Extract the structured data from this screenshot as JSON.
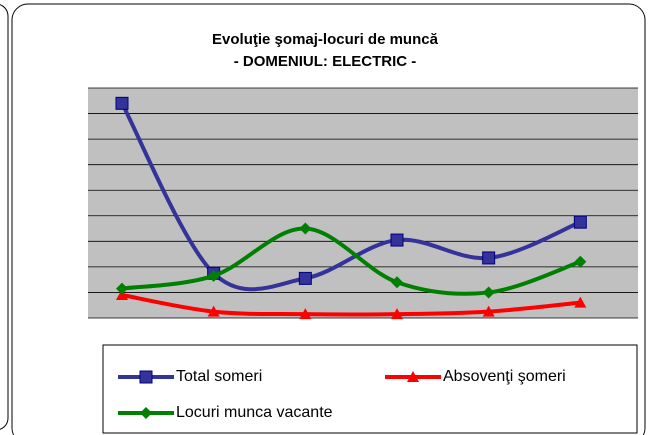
{
  "chart_data": {
    "type": "line",
    "title": [
      "Evoluţie şomaj-locuri de muncă",
      "- DOMENIUL: ELECTRIC -"
    ],
    "series": [
      {
        "name": "Total someri",
        "color": "#333399",
        "marker": "square",
        "values": [
          168,
          35,
          31,
          61,
          47,
          75
        ]
      },
      {
        "name": "Absovenţi şomeri",
        "color": "#ff0000",
        "marker": "triangle",
        "values": [
          18,
          5,
          3,
          3,
          5,
          12
        ]
      },
      {
        "name": "Locuri munca vacante",
        "color": "#008000",
        "marker": "diamond",
        "values": [
          23,
          33,
          70,
          28,
          20,
          44
        ]
      }
    ],
    "ylim": [
      0,
      180
    ],
    "yticks": [
      0,
      20,
      40,
      60,
      80,
      100,
      120,
      140,
      160,
      180
    ],
    "grid": true,
    "legend": "bottom"
  }
}
